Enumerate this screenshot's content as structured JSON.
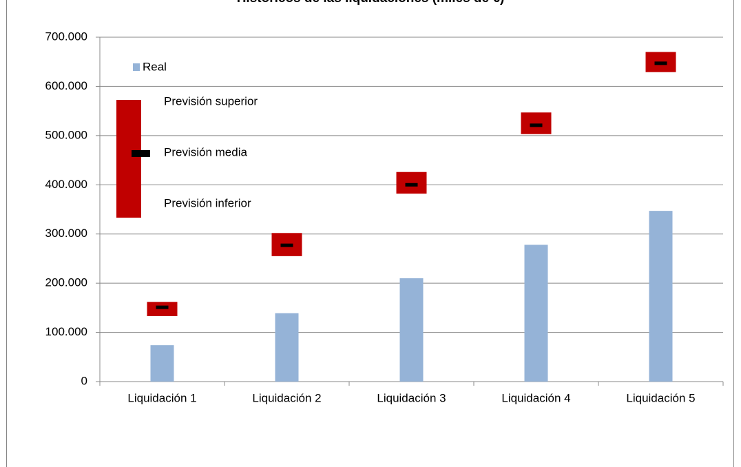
{
  "chart_data": {
    "type": "bar-range",
    "title": "Históricos de las liquidaciones (miles de €)",
    "categories": [
      "Liquidación 1",
      "Liquidación 2",
      "Liquidación 3",
      "Liquidación 4",
      "Liquidación 5"
    ],
    "series": [
      {
        "name": "Real",
        "color": "#95b3d7",
        "values": [
          74000,
          139000,
          210000,
          278000,
          347000
        ]
      },
      {
        "name": "Previsión superior",
        "color": "#c00000",
        "values": [
          162000,
          302000,
          426000,
          547000,
          670000
        ]
      },
      {
        "name": "Previsión media",
        "color": "#000000",
        "values": [
          151000,
          277000,
          400000,
          521000,
          647000
        ]
      },
      {
        "name": "Previsión inferior",
        "color": "#c00000",
        "values": [
          133000,
          255000,
          382000,
          503000,
          629000
        ]
      }
    ],
    "ylim": [
      0,
      700000
    ],
    "yticks": [
      0,
      {
        "value": 100000,
        "label": "100.000"
      },
      {
        "value": 200000,
        "label": "200.000"
      },
      {
        "value": 300000,
        "label": "300.000"
      },
      {
        "value": 400000,
        "label": "400.000"
      },
      {
        "value": 500000,
        "label": "500.000"
      },
      {
        "value": 600000,
        "label": "600.000"
      },
      {
        "value": 700000,
        "label": "700.000"
      }
    ],
    "grid": true
  }
}
